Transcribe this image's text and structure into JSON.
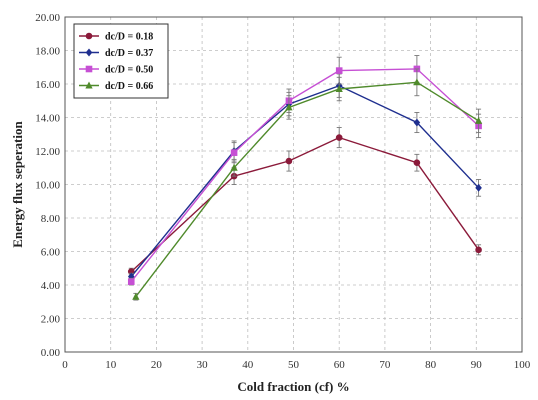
{
  "chart_data": {
    "type": "line",
    "title": "",
    "xlabel": "Cold fraction (cf) %",
    "ylabel": "Energy flux seperation",
    "xlim": [
      0,
      100
    ],
    "ylim": [
      0,
      20
    ],
    "x_ticks": [
      0,
      10,
      20,
      30,
      40,
      50,
      60,
      70,
      80,
      90,
      100
    ],
    "y_ticks": [
      0,
      2,
      4,
      6,
      8,
      10,
      12,
      14,
      16,
      18,
      20
    ],
    "x_tick_labels": [
      "0",
      "10",
      "20",
      "30",
      "40",
      "50",
      "60",
      "70",
      "80",
      "90",
      "100"
    ],
    "y_tick_labels": [
      "0.00",
      "2.00",
      "4.00",
      "6.00",
      "8.00",
      "10.00",
      "12.00",
      "14.00",
      "16.00",
      "18.00",
      "20.00"
    ],
    "grid": true,
    "grid_style": "dashed",
    "legend_position": "top-left",
    "error_bars": true,
    "series": [
      {
        "name": "dc/D = 0.18",
        "color": "#8b1a3a",
        "marker": "circle",
        "points": [
          [
            14.5,
            4.8
          ],
          [
            37,
            10.5
          ],
          [
            49,
            11.4
          ],
          [
            60,
            12.8
          ],
          [
            77,
            11.3
          ],
          [
            90.5,
            6.1
          ]
        ],
        "errors": [
          0.2,
          0.5,
          0.6,
          0.6,
          0.5,
          0.3
        ]
      },
      {
        "name": "dc/D = 0.37",
        "color": "#1f2f8f",
        "marker": "diamond",
        "points": [
          [
            14.5,
            4.5
          ],
          [
            37,
            12.0
          ],
          [
            49,
            14.8
          ],
          [
            60,
            15.9
          ],
          [
            77,
            13.7
          ],
          [
            90.5,
            9.8
          ]
        ],
        "errors": [
          0.2,
          0.6,
          0.7,
          0.7,
          0.6,
          0.5
        ]
      },
      {
        "name": "dc/D = 0.50",
        "color": "#c64fd4",
        "marker": "square",
        "points": [
          [
            14.5,
            4.2
          ],
          [
            37,
            11.9
          ],
          [
            49,
            15.0
          ],
          [
            60,
            16.8
          ],
          [
            77,
            16.9
          ],
          [
            90.5,
            13.5
          ]
        ],
        "errors": [
          0.2,
          0.6,
          0.7,
          0.8,
          0.8,
          0.7
        ]
      },
      {
        "name": "dc/D = 0.66",
        "color": "#4f8a2b",
        "marker": "triangle",
        "points": [
          [
            15.5,
            3.3
          ],
          [
            37,
            11.0
          ],
          [
            49,
            14.6
          ],
          [
            60,
            15.7
          ],
          [
            77,
            16.1
          ],
          [
            90.5,
            13.8
          ]
        ],
        "errors": [
          0.2,
          0.5,
          0.7,
          0.7,
          0.8,
          0.7
        ]
      }
    ]
  }
}
